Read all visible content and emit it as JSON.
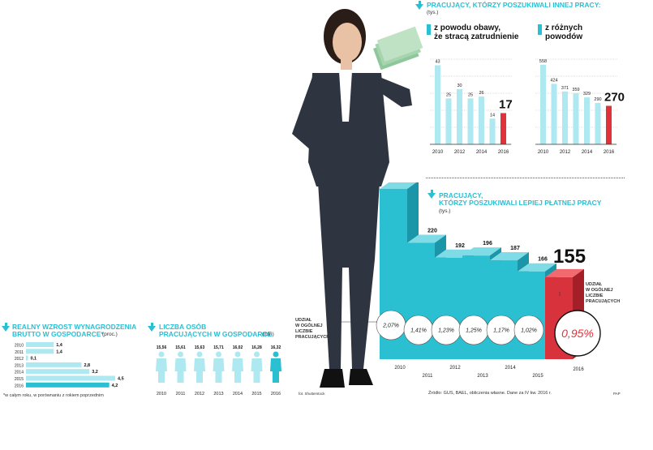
{
  "colors": {
    "accent": "#2bbfd2",
    "accent_light": "#aee8f0",
    "highlight": "#e0323a",
    "text": "#1a1a1a"
  },
  "top_right": {
    "title": "PRACUJĄCY, KTÓRZY POSZUKIWALI INNEJ PRACY:",
    "unit": "(tys.)",
    "left_label_1": "z powodu obawy,",
    "left_label_2": "że stracą zatrudnienie",
    "right_label_1": "z różnych",
    "right_label_2": "powodów"
  },
  "middle_right": {
    "title_1": "PRACUJĄCY,",
    "title_2": "KTÓRZY POSZUKIWALI LEPIEJ PŁATNEJ PRACY",
    "unit": "(tys.)",
    "share_label_left": [
      "UDZIAŁ",
      "W OGÓLNEJ",
      "LICZBIE",
      "PRACUJĄCYCH"
    ],
    "share_label_right": [
      "UDZIAŁ",
      "W OGÓLNEJ",
      "LICZBIE",
      "PRACUJĄCYCH"
    ]
  },
  "bottom_left": {
    "title_1": "REALNY WZROST WYNAGRODZENIA",
    "title_2": "BRUTTO W GOSPODARCE*",
    "unit": "(proc.)",
    "footnote": "*w całym roku, w porównaniu z rokiem poprzednim"
  },
  "bottom_mid": {
    "title_1": "LICZBA OSÓB",
    "title_2": "PRACUJĄCYCH W GOSPODARCE",
    "unit": "(mln)"
  },
  "photo_credit": "fot. Shutterstock",
  "source": "Źródło: GUS, BAEL, obliczenia własne. Dane za IV kw. 2016 r.",
  "brand": "PAP",
  "chart_data": [
    {
      "type": "bar",
      "title": "z powodu obawy, że stracą zatrudnienie",
      "unit": "tys.",
      "categories": [
        "2010",
        "2011",
        "2012",
        "2013",
        "2014",
        "2015",
        "2016"
      ],
      "x_tick_labels": [
        "2010",
        "2012",
        "2014",
        "2016"
      ],
      "values": [
        43,
        25,
        30,
        25,
        26,
        14,
        17
      ],
      "highlight_index": 6
    },
    {
      "type": "bar",
      "title": "z różnych powodów",
      "unit": "tys.",
      "categories": [
        "2010",
        "2011",
        "2012",
        "2013",
        "2014",
        "2015",
        "2016"
      ],
      "x_tick_labels": [
        "2010",
        "2012",
        "2014",
        "2016"
      ],
      "values": [
        558,
        424,
        371,
        359,
        329,
        290,
        270
      ],
      "highlight_index": 6
    },
    {
      "type": "bar",
      "title": "PRACUJĄCY, KTÓRZY POSZUKIWALI LEPIEJ PŁATNEJ PRACY",
      "unit": "tys.",
      "categories": [
        "2010",
        "2011",
        "2012",
        "2013",
        "2014",
        "2015",
        "2016"
      ],
      "values": [
        322,
        220,
        192,
        196,
        187,
        166,
        155
      ],
      "share_labels": [
        "2,07%",
        "1,41%",
        "1,23%",
        "1,25%",
        "1,17%",
        "1,02%",
        "0,95%"
      ],
      "highlight_index": 6
    },
    {
      "type": "bar",
      "orientation": "horizontal",
      "title": "REALNY WZROST WYNAGRODZENIA BRUTTO W GOSPODARCE*",
      "unit": "proc.",
      "categories": [
        "2010",
        "2011",
        "2012",
        "2013",
        "2014",
        "2015",
        "2016"
      ],
      "values": [
        1.4,
        1.4,
        0.1,
        2.8,
        3.2,
        4.5,
        4.2
      ],
      "value_labels": [
        "1,4",
        "1,4",
        "0,1",
        "2,8",
        "3,2",
        "4,5",
        "4,2"
      ],
      "highlight_index": 6
    },
    {
      "type": "pictogram",
      "title": "LICZBA OSÓB PRACUJĄCYCH W GOSPODARCE",
      "unit": "mln",
      "categories": [
        "2010",
        "2011",
        "2012",
        "2013",
        "2014",
        "2015",
        "2016"
      ],
      "values": [
        15.56,
        15.61,
        15.63,
        15.71,
        16.02,
        16.28,
        16.32
      ],
      "value_labels": [
        "15,56",
        "15,61",
        "15,63",
        "15,71",
        "16,02",
        "16,28",
        "16,32"
      ],
      "highlight_index": 6
    }
  ]
}
